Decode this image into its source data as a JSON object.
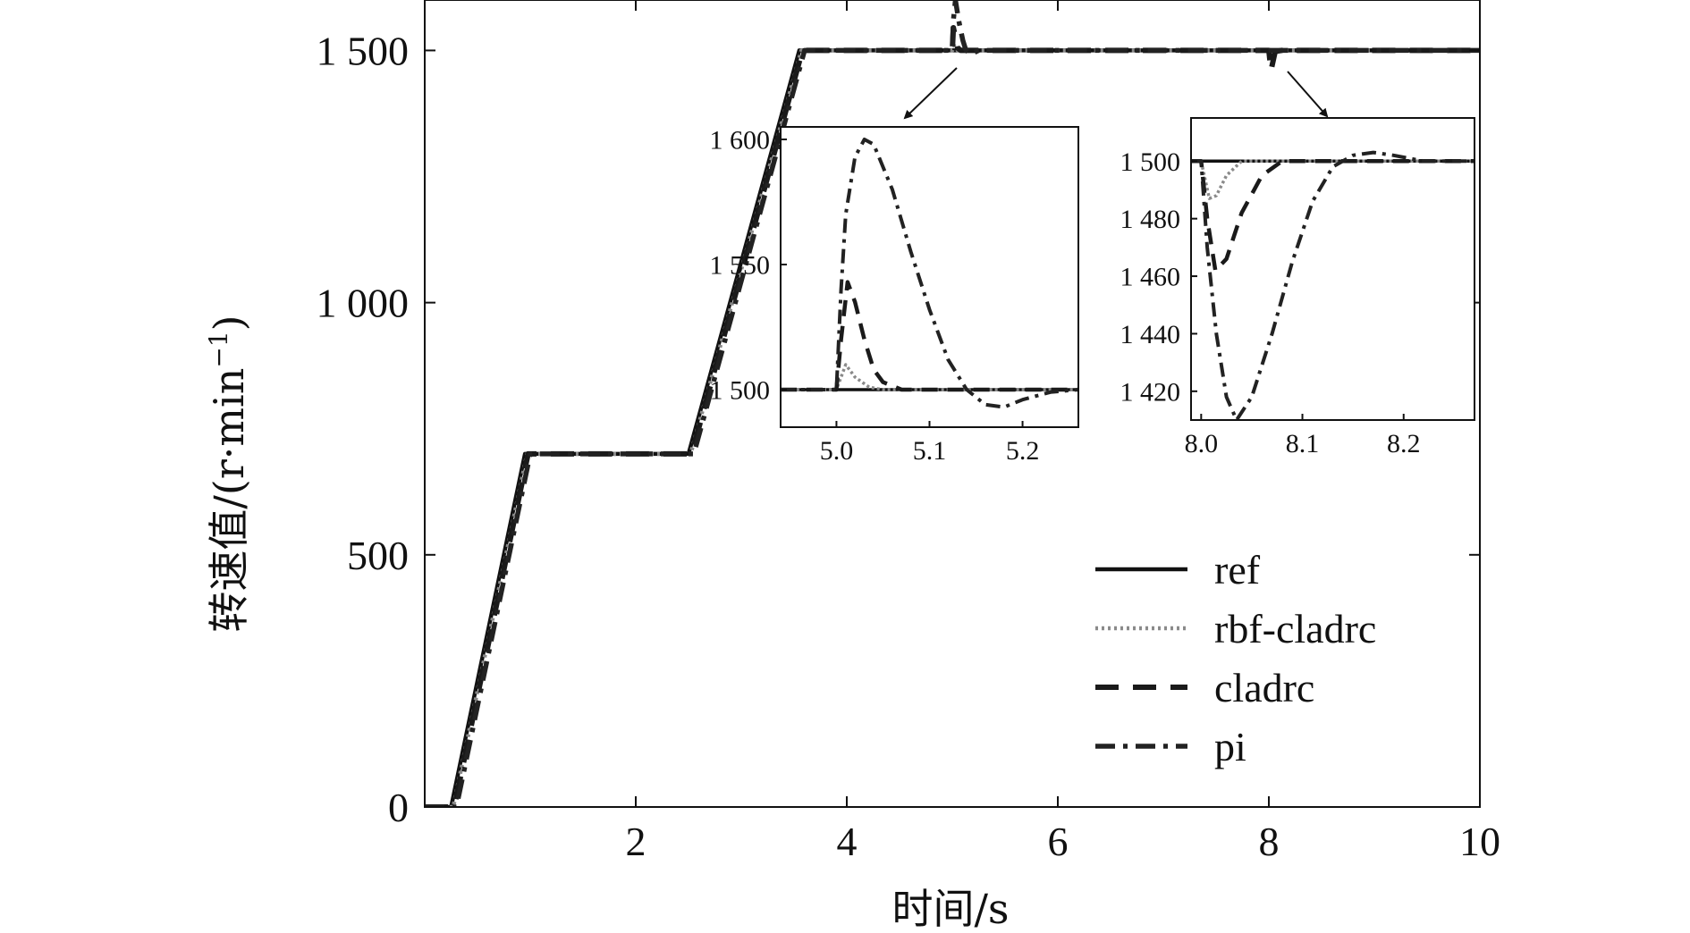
{
  "chart_data": [
    {
      "id": "main",
      "type": "line",
      "xlabel": "时间/s",
      "ylabel": "转速值/(r·min",
      "ylabel_superscript": "−1",
      "ylabel_suffix": ")",
      "xlim": [
        0,
        10
      ],
      "ylim": [
        0,
        1600
      ],
      "xticks": [
        {
          "v": 2,
          "label": "2"
        },
        {
          "v": 4,
          "label": "4"
        },
        {
          "v": 6,
          "label": "6"
        },
        {
          "v": 8,
          "label": "8"
        },
        {
          "v": 10,
          "label": "10"
        }
      ],
      "yticks": [
        {
          "v": 0,
          "label": "0"
        },
        {
          "v": 500,
          "label": "500"
        },
        {
          "v": 1000,
          "label": "1 000"
        },
        {
          "v": 1500,
          "label": "1 500"
        }
      ],
      "grid": false,
      "legend_position": "bottom-right",
      "series": [
        {
          "name": "ref",
          "style": "solid",
          "x": [
            0,
            0.25,
            0.95,
            2.5,
            3.55,
            10
          ],
          "y": [
            0,
            0,
            700,
            700,
            1500,
            1500
          ]
        },
        {
          "name": "rbf-cladrc",
          "style": "dotted",
          "x": [
            0,
            0.27,
            0.97,
            2.52,
            3.57,
            5.0,
            5.015,
            5.05,
            8.0,
            8.01,
            8.04,
            10
          ],
          "y": [
            0,
            0,
            700,
            700,
            1500,
            1500,
            1510,
            1500,
            1500,
            1488,
            1500,
            1500
          ]
        },
        {
          "name": "cladrc",
          "style": "dashed",
          "x": [
            0,
            0.28,
            0.98,
            2.53,
            3.58,
            5.0,
            5.01,
            5.05,
            5.08,
            8.0,
            8.02,
            8.06,
            8.12,
            10
          ],
          "y": [
            0,
            0,
            700,
            700,
            1500,
            1500,
            1545,
            1505,
            1500,
            1500,
            1460,
            1498,
            1500,
            1500
          ]
        },
        {
          "name": "pi",
          "style": "dashdot",
          "x": [
            0,
            0.3,
            1.0,
            2.55,
            3.6,
            4.99,
            5.0,
            5.01,
            5.03,
            5.06,
            5.1,
            5.13,
            5.18,
            5.25,
            10,
            10
          ],
          "y": [
            0,
            0,
            700,
            700,
            1500,
            1500,
            1500,
            1560,
            1600,
            1560,
            1520,
            1500,
            1493,
            1500,
            1500,
            1500
          ]
        }
      ]
    },
    {
      "id": "inset-1",
      "type": "line",
      "xlim": [
        4.94,
        5.26
      ],
      "ylim": [
        1485,
        1605
      ],
      "xticks": [
        {
          "v": 5.0,
          "label": "5.0"
        },
        {
          "v": 5.1,
          "label": "5.1"
        },
        {
          "v": 5.2,
          "label": "5.2"
        }
      ],
      "yticks": [
        {
          "v": 1500,
          "label": "1 500"
        },
        {
          "v": 1550,
          "label": "1 550"
        },
        {
          "v": 1600,
          "label": "1 600"
        }
      ],
      "series": [
        {
          "name": "ref",
          "style": "solid",
          "x": [
            4.94,
            5.26
          ],
          "y": [
            1500,
            1500
          ]
        },
        {
          "name": "rbf-cladrc",
          "style": "dotted",
          "x": [
            4.94,
            5.0,
            5.01,
            5.02,
            5.035,
            5.05,
            5.26
          ],
          "y": [
            1500,
            1500,
            1510,
            1505,
            1501,
            1500,
            1500
          ]
        },
        {
          "name": "cladrc",
          "style": "dashed",
          "x": [
            4.94,
            5.0,
            5.005,
            5.012,
            5.02,
            5.03,
            5.04,
            5.05,
            5.07,
            5.26
          ],
          "y": [
            1500,
            1500,
            1520,
            1543,
            1535,
            1520,
            1508,
            1503,
            1500,
            1500
          ]
        },
        {
          "name": "pi",
          "style": "dashdot",
          "x": [
            4.94,
            5.0,
            5.005,
            5.01,
            5.02,
            5.03,
            5.04,
            5.06,
            5.08,
            5.1,
            5.12,
            5.14,
            5.16,
            5.18,
            5.2,
            5.23,
            5.26
          ],
          "y": [
            1500,
            1500,
            1540,
            1570,
            1593,
            1600,
            1598,
            1580,
            1555,
            1532,
            1512,
            1500,
            1494,
            1493,
            1496,
            1499,
            1500
          ]
        }
      ]
    },
    {
      "id": "inset-2",
      "type": "line",
      "xlim": [
        7.99,
        8.27
      ],
      "ylim": [
        1410,
        1515
      ],
      "xticks": [
        {
          "v": 8.0,
          "label": "8.0"
        },
        {
          "v": 8.1,
          "label": "8.1"
        },
        {
          "v": 8.2,
          "label": "8.2"
        }
      ],
      "yticks": [
        {
          "v": 1420,
          "label": "1 420"
        },
        {
          "v": 1440,
          "label": "1 440"
        },
        {
          "v": 1460,
          "label": "1 460"
        },
        {
          "v": 1480,
          "label": "1 480"
        },
        {
          "v": 1500,
          "label": "1 500"
        }
      ],
      "series": [
        {
          "name": "ref",
          "style": "solid",
          "x": [
            7.99,
            8.27
          ],
          "y": [
            1500,
            1500
          ]
        },
        {
          "name": "rbf-cladrc",
          "style": "dotted",
          "x": [
            7.99,
            8.0,
            8.008,
            8.015,
            8.025,
            8.04,
            8.27
          ],
          "y": [
            1500,
            1500,
            1487,
            1488,
            1495,
            1500,
            1500
          ]
        },
        {
          "name": "cladrc",
          "style": "dashed",
          "x": [
            7.99,
            8.0,
            8.006,
            8.014,
            8.025,
            8.04,
            8.06,
            8.08,
            8.27
          ],
          "y": [
            1500,
            1500,
            1480,
            1462,
            1466,
            1482,
            1495,
            1500,
            1500
          ]
        },
        {
          "name": "pi",
          "style": "dashdot",
          "x": [
            7.99,
            8.0,
            8.006,
            8.015,
            8.025,
            8.035,
            8.05,
            8.07,
            8.09,
            8.11,
            8.13,
            8.15,
            8.17,
            8.19,
            8.22,
            8.27
          ],
          "y": [
            1500,
            1500,
            1470,
            1440,
            1418,
            1410,
            1418,
            1440,
            1465,
            1486,
            1498,
            1502,
            1503,
            1502,
            1500,
            1500
          ]
        }
      ]
    }
  ],
  "series_colors": {
    "ref": "#111111",
    "rbf-cladrc": "#8a8a8a",
    "cladrc": "#1a1a1a",
    "pi": "#222222"
  }
}
